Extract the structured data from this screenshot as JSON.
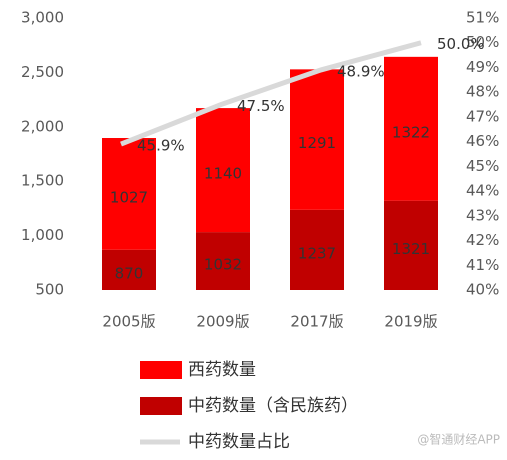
{
  "chart_data": {
    "type": "bar_line",
    "categories": [
      "2005版",
      "2009版",
      "2017版",
      "2019版"
    ],
    "series": [
      {
        "name": "西药数量",
        "color": "#ff0000",
        "type": "bar",
        "values": [
          1027,
          1140,
          1291,
          1322
        ]
      },
      {
        "name": "中药数量（含民族药）",
        "color": "#c00000",
        "type": "bar",
        "values": [
          870,
          1032,
          1237,
          1321
        ]
      },
      {
        "name": "中药数量占比",
        "color": "#d9d9d9",
        "type": "line",
        "axis": "y2",
        "values": [
          45.9,
          47.5,
          48.9,
          50.0
        ],
        "value_labels": [
          "45.9%",
          "47.5%",
          "48.9%",
          "50.0%"
        ]
      }
    ],
    "stack_order": [
      1,
      0
    ],
    "ylim": [
      500,
      3000
    ],
    "yticks": [
      500,
      {
        "value": 1000,
        "label": "1,000"
      },
      {
        "value": 1500,
        "label": "1,500"
      },
      {
        "value": 2000,
        "label": "2,000"
      },
      {
        "value": 2500,
        "label": "2,500"
      },
      {
        "value": 3000,
        "label": "3,000"
      }
    ],
    "y2lim": [
      40,
      51
    ],
    "y2ticks": [
      {
        "value": 40,
        "label": "40%"
      },
      {
        "value": 41,
        "label": "41%"
      },
      {
        "value": 42,
        "label": "42%"
      },
      {
        "value": 43,
        "label": "43%"
      },
      {
        "value": 44,
        "label": "44%"
      },
      {
        "value": 45,
        "label": "45%"
      },
      {
        "value": 46,
        "label": "46%"
      },
      {
        "value": 47,
        "label": "47%"
      },
      {
        "value": 48,
        "label": "48%"
      },
      {
        "value": 49,
        "label": "49%"
      },
      {
        "value": 50,
        "label": "50%"
      },
      {
        "value": 51,
        "label": "51%"
      }
    ],
    "legend": "bottom",
    "watermark": "@智通财经APP"
  }
}
